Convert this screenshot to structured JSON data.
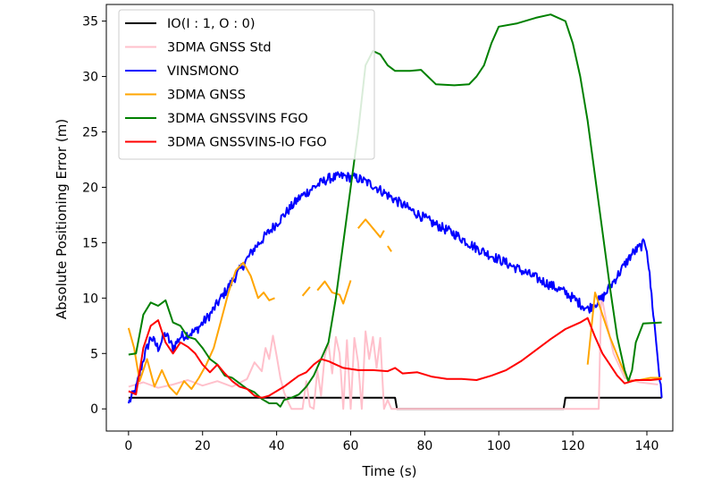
{
  "chart_data": {
    "type": "line",
    "title": "",
    "xlabel": "Time (s)",
    "ylabel": "Absolute Positioning Error (m)",
    "xlim": [
      -6,
      147
    ],
    "ylim": [
      -2,
      36.5
    ],
    "xticks": [
      0,
      20,
      40,
      60,
      80,
      100,
      120,
      140
    ],
    "yticks": [
      0,
      5,
      10,
      15,
      20,
      25,
      30,
      35
    ],
    "grid": false,
    "legend_position": "top-left",
    "series": [
      {
        "name": "IO(I : 1, O : 0)",
        "color": "#000000",
        "noise": 0,
        "segments": [
          [
            [
              0,
              1
            ],
            [
              72,
              1
            ],
            [
              72.5,
              0
            ],
            [
              117.5,
              0
            ],
            [
              118,
              1
            ],
            [
              144,
              1
            ]
          ]
        ]
      },
      {
        "name": "3DMA GNSS Std",
        "color": "#ffc0cb",
        "noise": 0,
        "segments": [
          [
            [
              0,
              2
            ],
            [
              4,
              2.4
            ],
            [
              8,
              1.9
            ],
            [
              12,
              2.2
            ],
            [
              16,
              2.6
            ],
            [
              20,
              2.1
            ],
            [
              24,
              2.5
            ],
            [
              28,
              2
            ],
            [
              32,
              2.7
            ],
            [
              34,
              4.2
            ],
            [
              36,
              3.4
            ],
            [
              37,
              5.5
            ],
            [
              38,
              4.5
            ],
            [
              39,
              6.6
            ],
            [
              40,
              4.8
            ],
            [
              41,
              2.8
            ],
            [
              42,
              1.5
            ],
            [
              43,
              0.7
            ],
            [
              44,
              0
            ],
            [
              47,
              0
            ],
            [
              48,
              2.5
            ],
            [
              49,
              0.2
            ],
            [
              50,
              0
            ],
            [
              51,
              3.5
            ],
            [
              52,
              1.2
            ],
            [
              53,
              4.8
            ],
            [
              54,
              5.9
            ],
            [
              55,
              3.2
            ],
            [
              56,
              6.5
            ],
            [
              57,
              5
            ],
            [
              58,
              0
            ],
            [
              59,
              6.2
            ],
            [
              60,
              0
            ],
            [
              61,
              6.4
            ],
            [
              62,
              4.2
            ],
            [
              63,
              0
            ],
            [
              64,
              7
            ],
            [
              65,
              4.5
            ],
            [
              66,
              6.5
            ],
            [
              67,
              3.7
            ],
            [
              68,
              6.4
            ],
            [
              69,
              0
            ],
            [
              70,
              0.8
            ],
            [
              71,
              0
            ],
            [
              72,
              0
            ],
            [
              125,
              0
            ],
            [
              127,
              0
            ],
            [
              127.7,
              10.3
            ],
            [
              129,
              8
            ],
            [
              131,
              5
            ],
            [
              134,
              2.8
            ],
            [
              138,
              2.4
            ],
            [
              143,
              2.2
            ]
          ]
        ]
      },
      {
        "name": "VINSMONO",
        "color": "#0000ff",
        "noise": 0.45,
        "segments": [
          [
            [
              0,
              0.5
            ],
            [
              2,
              1.8
            ],
            [
              4,
              4.5
            ],
            [
              6,
              6.5
            ],
            [
              8,
              5.5
            ],
            [
              10,
              6.8
            ],
            [
              12,
              5.5
            ],
            [
              14,
              6.5
            ],
            [
              18,
              7
            ],
            [
              22,
              8.5
            ],
            [
              26,
              10.5
            ],
            [
              30,
              12.5
            ],
            [
              34,
              14.5
            ],
            [
              38,
              16
            ],
            [
              42,
              17.5
            ],
            [
              46,
              19
            ],
            [
              50,
              20
            ],
            [
              54,
              20.8
            ],
            [
              58,
              21
            ],
            [
              62,
              20.8
            ],
            [
              66,
              20.2
            ],
            [
              70,
              19.3
            ],
            [
              76,
              18
            ],
            [
              82,
              16.8
            ],
            [
              88,
              15.8
            ],
            [
              94,
              14.5
            ],
            [
              100,
              13.5
            ],
            [
              106,
              12.5
            ],
            [
              112,
              11.5
            ],
            [
              118,
              10.5
            ],
            [
              124,
              9
            ],
            [
              128,
              10
            ],
            [
              132,
              12
            ],
            [
              136,
              14
            ],
            [
              139.5,
              15
            ],
            [
              140,
              14.5
            ],
            [
              144,
              1
            ]
          ]
        ]
      },
      {
        "name": "3DMA GNSS",
        "color": "#ffa500",
        "noise": 0,
        "segments": [
          [
            [
              0,
              7.3
            ],
            [
              1.5,
              5.5
            ],
            [
              3,
              2.5
            ],
            [
              5,
              4.5
            ],
            [
              7,
              2
            ],
            [
              9,
              3.5
            ],
            [
              11,
              2
            ],
            [
              13,
              1.3
            ],
            [
              15,
              2.5
            ],
            [
              17,
              1.8
            ],
            [
              19,
              2.8
            ],
            [
              21,
              4
            ],
            [
              23,
              5.5
            ],
            [
              25,
              8
            ],
            [
              27,
              10.5
            ],
            [
              29,
              12.5
            ],
            [
              31,
              13.2
            ],
            [
              33,
              12
            ],
            [
              35,
              10
            ],
            [
              36.5,
              10.5
            ],
            [
              38,
              9.8
            ],
            [
              39.5,
              10
            ]
          ],
          [
            [
              47,
              10.2
            ],
            [
              49,
              11
            ]
          ],
          [
            [
              51,
              10.7
            ],
            [
              53,
              11.5
            ],
            [
              55,
              10.5
            ],
            [
              57,
              10.3
            ],
            [
              58,
              9.5
            ],
            [
              60,
              11.6
            ]
          ],
          [
            [
              62,
              16.3
            ],
            [
              64,
              17.1
            ],
            [
              66,
              16.3
            ],
            [
              68,
              15.5
            ],
            [
              69,
              16.1
            ]
          ],
          [
            [
              70,
              14.7
            ],
            [
              71,
              14.2
            ]
          ],
          [
            [
              124,
              4
            ],
            [
              126,
              10.5
            ],
            [
              128,
              8.5
            ],
            [
              130,
              6.5
            ],
            [
              133,
              4
            ],
            [
              135,
              2.5
            ],
            [
              138,
              2.6
            ],
            [
              141,
              2.8
            ],
            [
              144,
              2.8
            ]
          ]
        ]
      },
      {
        "name": "3DMA GNSSVINS FGO",
        "color": "#008000",
        "noise": 0,
        "segments": [
          [
            [
              0,
              4.9
            ],
            [
              2,
              5
            ],
            [
              4,
              8.5
            ],
            [
              6,
              9.6
            ],
            [
              8,
              9.3
            ],
            [
              10,
              9.8
            ],
            [
              12,
              7.8
            ],
            [
              14,
              7.5
            ],
            [
              16,
              6.5
            ],
            [
              18,
              6.3
            ],
            [
              20,
              5.5
            ],
            [
              22,
              4.5
            ],
            [
              24,
              4
            ],
            [
              26,
              3
            ],
            [
              28,
              2.8
            ],
            [
              30,
              2.3
            ],
            [
              32,
              1.8
            ],
            [
              34,
              1.5
            ],
            [
              36,
              0.9
            ],
            [
              38,
              0.5
            ],
            [
              40,
              0.5
            ],
            [
              41,
              0.2
            ],
            [
              42,
              0.8
            ],
            [
              44,
              1
            ],
            [
              46,
              1.3
            ],
            [
              48,
              2
            ],
            [
              50,
              3
            ],
            [
              52,
              4.5
            ],
            [
              54,
              6
            ],
            [
              56,
              10
            ],
            [
              58,
              15
            ],
            [
              60,
              20
            ],
            [
              62,
              25
            ],
            [
              64,
              31
            ],
            [
              66,
              32.3
            ],
            [
              68,
              32
            ],
            [
              70,
              31
            ],
            [
              72,
              30.5
            ],
            [
              76,
              30.5
            ],
            [
              79,
              30.6
            ],
            [
              83,
              29.3
            ],
            [
              88,
              29.2
            ],
            [
              92,
              29.3
            ],
            [
              94,
              30
            ],
            [
              96,
              31
            ],
            [
              98,
              33
            ],
            [
              100,
              34.5
            ],
            [
              105,
              34.8
            ],
            [
              110,
              35.3
            ],
            [
              114,
              35.6
            ],
            [
              118,
              35
            ],
            [
              120,
              33
            ],
            [
              122,
              30
            ],
            [
              124,
              26
            ],
            [
              126,
              21
            ],
            [
              128,
              16
            ],
            [
              130,
              11
            ],
            [
              132,
              6.5
            ],
            [
              134,
              3.5
            ],
            [
              135,
              2.5
            ],
            [
              136,
              3.5
            ],
            [
              137,
              6
            ],
            [
              139,
              7.7
            ],
            [
              144,
              7.8
            ]
          ]
        ]
      },
      {
        "name": "3DMA GNSSVINS-IO FGO",
        "color": "#ff0000",
        "noise": 0,
        "segments": [
          [
            [
              0,
              1.6
            ],
            [
              2,
              1.3
            ],
            [
              4,
              5.5
            ],
            [
              6,
              7.5
            ],
            [
              8,
              8
            ],
            [
              10,
              6
            ],
            [
              12,
              5
            ],
            [
              14,
              6
            ],
            [
              16,
              5.6
            ],
            [
              18,
              5
            ],
            [
              20,
              4
            ],
            [
              22,
              3.3
            ],
            [
              24,
              4
            ],
            [
              26,
              3.2
            ],
            [
              28,
              2.5
            ],
            [
              30,
              2
            ],
            [
              32,
              1.8
            ],
            [
              34,
              1.2
            ],
            [
              36,
              1
            ],
            [
              38,
              1.2
            ],
            [
              40,
              1.6
            ],
            [
              42,
              2
            ],
            [
              44,
              2.5
            ],
            [
              46,
              3
            ],
            [
              48,
              3.3
            ],
            [
              50,
              4
            ],
            [
              52,
              4.5
            ],
            [
              54,
              4.3
            ],
            [
              56,
              4
            ],
            [
              58,
              3.7
            ],
            [
              62,
              3.5
            ],
            [
              66,
              3.5
            ],
            [
              70,
              3.4
            ],
            [
              72,
              3.7
            ],
            [
              74,
              3.2
            ],
            [
              78,
              3.3
            ],
            [
              82,
              2.9
            ],
            [
              86,
              2.7
            ],
            [
              90,
              2.7
            ],
            [
              94,
              2.6
            ],
            [
              98,
              3
            ],
            [
              102,
              3.5
            ],
            [
              106,
              4.3
            ],
            [
              110,
              5.3
            ],
            [
              114,
              6.3
            ],
            [
              118,
              7.2
            ],
            [
              122,
              7.8
            ],
            [
              124,
              8.2
            ],
            [
              126,
              6.5
            ],
            [
              128,
              5
            ],
            [
              130,
              4
            ],
            [
              132,
              3
            ],
            [
              134,
              2.3
            ],
            [
              137,
              2.6
            ],
            [
              141,
              2.6
            ],
            [
              144,
              2.7
            ]
          ]
        ]
      }
    ]
  }
}
